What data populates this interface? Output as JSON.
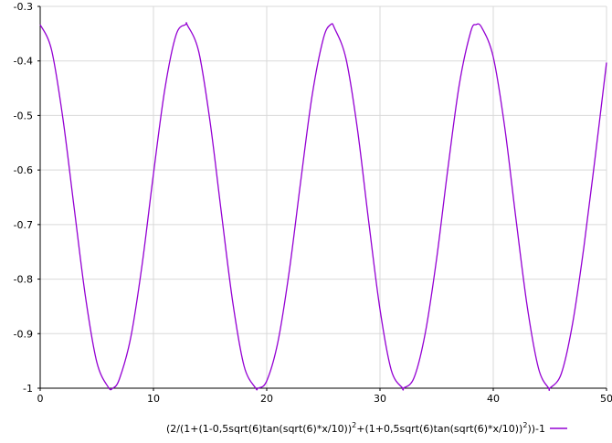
{
  "chart_data": {
    "type": "line",
    "xlim": [
      0,
      50
    ],
    "ylim": [
      -1,
      -0.3
    ],
    "x_ticks": [
      0,
      10,
      20,
      30,
      40,
      50
    ],
    "x_tick_labels": [
      "0",
      "10",
      "20",
      "30",
      "40",
      "50"
    ],
    "y_ticks": [
      -1,
      -0.9,
      -0.8,
      -0.7,
      -0.6,
      -0.5,
      -0.4,
      -0.3
    ],
    "y_tick_labels": [
      "-1",
      "-0.9",
      "-0.8",
      "-0.7",
      "-0.6",
      "-0.5",
      "-0.4",
      "-0.3"
    ],
    "grid": true,
    "legend": "bottom",
    "series": [
      {
        "name": "(2/(1+(1-0,5sqrt(6)tan(sqrt(6)*x/10))^2+(1+0,5sqrt(6)tan(sqrt(6)*x/10))^2))-1",
        "legend_parts": {
          "p1": "(2/(1+(1-0,5sqrt(6)tan(sqrt(6)*x/10))",
          "sup1": "2",
          "p2": "+(1+0,5sqrt(6)tan(sqrt(6)*x/10))",
          "sup2": "2",
          "p3": "))-1"
        },
        "color": "#9400d3",
        "x": [
          0,
          1,
          2,
          3,
          4,
          5,
          6,
          6.41,
          7,
          8,
          9,
          10,
          11,
          12,
          12.83,
          13,
          14,
          15,
          16,
          17,
          18,
          19,
          19.24,
          20,
          21,
          22,
          23,
          24,
          25,
          25.65,
          26,
          27,
          28,
          29,
          30,
          31,
          32,
          32.06,
          33,
          34,
          35,
          36,
          37,
          38,
          38.48,
          39,
          40,
          41,
          42,
          43,
          44,
          44.89,
          45,
          46,
          47,
          48,
          49,
          50
        ],
        "y": [
          -0.3333,
          -0.3796,
          -0.5047,
          -0.6696,
          -0.8327,
          -0.9524,
          -0.9978,
          -1.0,
          -0.9828,
          -0.9065,
          -0.7732,
          -0.6071,
          -0.4524,
          -0.3521,
          -0.3333,
          -0.3346,
          -0.3832,
          -0.5118,
          -0.679,
          -0.8422,
          -0.9594,
          -0.9992,
          -1.0,
          -0.9867,
          -0.9139,
          -0.7839,
          -0.6208,
          -0.4645,
          -0.3589,
          -0.3333,
          -0.3406,
          -0.396,
          -0.5238,
          -0.6938,
          -0.8554,
          -0.9672,
          -0.9999,
          -1.0,
          -0.9812,
          -0.8986,
          -0.7625,
          -0.5963,
          -0.4436,
          -0.3472,
          -0.3333,
          -0.3394,
          -0.3928,
          -0.5197,
          -0.6888,
          -0.8502,
          -0.964,
          -1.0,
          -0.9999,
          -0.9738,
          -0.882,
          -0.7414,
          -0.576,
          -0.403
        ]
      }
    ]
  }
}
